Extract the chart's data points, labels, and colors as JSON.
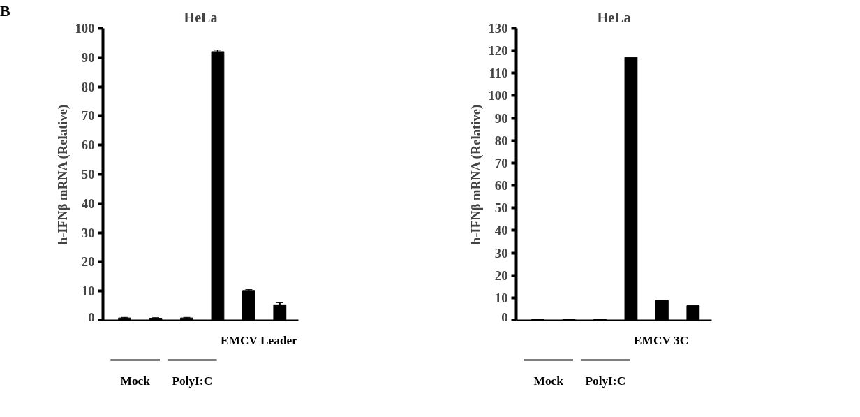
{
  "chart_data": [
    {
      "type": "bar",
      "title": "HeLa",
      "ylabel": "h-IFNβ mRNA (Relative)",
      "categories": [
        null,
        null,
        null,
        null,
        null,
        null
      ],
      "values": [
        0.8,
        0.7,
        0.8,
        92,
        10.2,
        5.3
      ],
      "errors": [
        0.2,
        0.2,
        0.2,
        0.5,
        0.3,
        0.7
      ],
      "color": "#000000",
      "ylim": [
        0,
        100
      ],
      "yticks": [
        0,
        10,
        20,
        30,
        40,
        50,
        60,
        70,
        80,
        90,
        100
      ],
      "grid": false,
      "annotations": [
        "B",
        "EMCV Leader",
        "Mock",
        "PolyI:C"
      ]
    },
    {
      "type": "bar",
      "title": "HeLa",
      "ylabel": "h-IFNβ mRNA (Relative)",
      "categories": [
        null,
        null,
        null,
        null,
        null,
        null
      ],
      "values": [
        0.6,
        0.5,
        0.5,
        117,
        9,
        6.5
      ],
      "color": "#000000",
      "ylim": [
        0,
        130
      ],
      "yticks": [
        0,
        10,
        20,
        30,
        40,
        50,
        60,
        70,
        80,
        90,
        100,
        110,
        120,
        130
      ],
      "grid": false,
      "annotations": [
        "EMCV 3C",
        "Mock",
        "PolyI:C"
      ]
    }
  ]
}
